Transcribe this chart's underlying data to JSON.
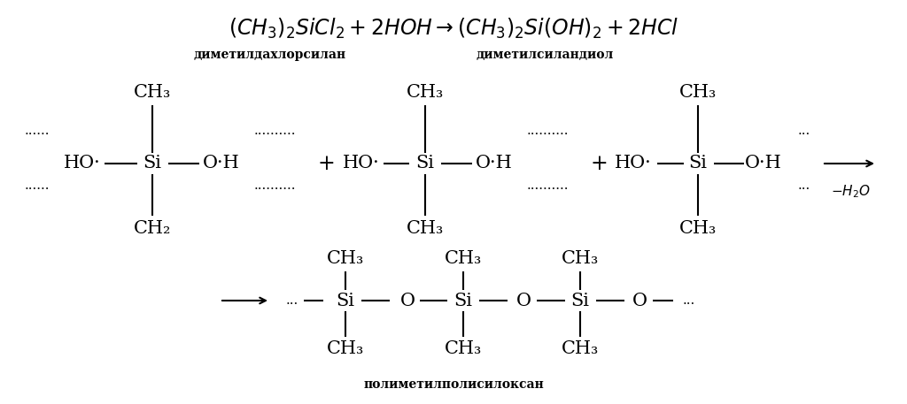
{
  "bg_color": "#ffffff",
  "figsize": [
    10.24,
    4.57
  ],
  "dpi": 100,
  "label_left": "диметилдахлорсилан",
  "label_right": "диметилсиландиол",
  "bottom_label": "полиметилполисилоксан"
}
